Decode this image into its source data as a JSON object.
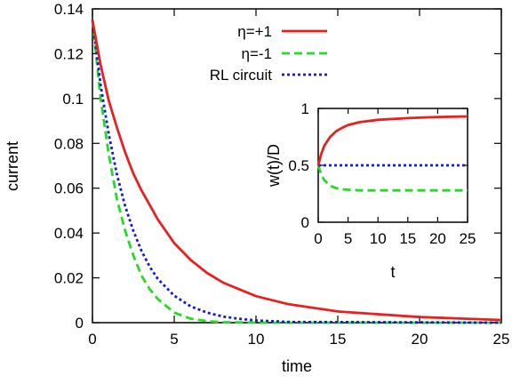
{
  "chart_data": [
    {
      "type": "line",
      "xlabel": "time",
      "ylabel": "current",
      "xlim": [
        0,
        25
      ],
      "ylim": [
        0,
        0.14
      ],
      "xticks": [
        0,
        5,
        10,
        15,
        20,
        25
      ],
      "yticks": [
        0,
        0.02,
        0.04,
        0.06,
        0.08,
        0.1,
        0.12,
        0.14
      ],
      "xtick_labels": [
        "0",
        "5",
        "10",
        "15",
        "20",
        "25"
      ],
      "ytick_labels": [
        "0",
        "0.02",
        "0.04",
        "0.06",
        "0.08",
        "0.1",
        "0.12",
        "0.14"
      ],
      "grid": false,
      "legend_position": "top-center",
      "series": [
        {
          "name": "η=+1",
          "color": "#e8211e",
          "dash": "solid",
          "x": [
            0,
            0.5,
            1,
            1.5,
            2,
            2.5,
            3,
            4,
            5,
            6,
            7,
            8,
            10,
            12,
            15,
            20,
            25
          ],
          "y": [
            0.135,
            0.115,
            0.099,
            0.087,
            0.076,
            0.0665,
            0.059,
            0.046,
            0.0355,
            0.028,
            0.0222,
            0.0178,
            0.0118,
            0.0082,
            0.005,
            0.0025,
            0.0012
          ]
        },
        {
          "name": "η=-1",
          "color": "#22dd22",
          "dash": "dashed",
          "x": [
            0,
            0.5,
            1,
            1.5,
            2,
            2.5,
            3,
            3.5,
            4,
            5,
            6,
            7,
            8,
            10,
            25
          ],
          "y": [
            0.135,
            0.1,
            0.075,
            0.055,
            0.041,
            0.03,
            0.021,
            0.015,
            0.0105,
            0.0045,
            0.0018,
            0.0007,
            0.0002,
            0,
            0
          ]
        },
        {
          "name": "RL circuit",
          "color": "#1a1adc",
          "dash": "dotted",
          "x": [
            0,
            0.5,
            1,
            1.5,
            2,
            2.5,
            3,
            3.5,
            4,
            5,
            6,
            7,
            8,
            9,
            10,
            12,
            25
          ],
          "y": [
            0.135,
            0.106,
            0.084,
            0.066,
            0.052,
            0.041,
            0.032,
            0.025,
            0.0195,
            0.012,
            0.0073,
            0.0045,
            0.0027,
            0.0017,
            0.001,
            0.0003,
            0
          ]
        }
      ]
    },
    {
      "type": "line",
      "xlabel": "t",
      "ylabel": "w(t)/D",
      "xlim": [
        0,
        25
      ],
      "ylim": [
        0,
        1
      ],
      "xticks": [
        0,
        5,
        10,
        15,
        20,
        25
      ],
      "yticks": [
        0,
        0.5,
        1
      ],
      "xtick_labels": [
        "0",
        "5",
        "10",
        "15",
        "20",
        "25"
      ],
      "ytick_labels": [
        "0",
        "0.5",
        "1"
      ],
      "grid": false,
      "series": [
        {
          "name": "η=+1",
          "color": "#e8211e",
          "dash": "solid",
          "x": [
            0,
            0.5,
            1,
            2,
            3,
            4,
            5,
            7,
            10,
            15,
            20,
            25
          ],
          "y": [
            0.5,
            0.6,
            0.67,
            0.75,
            0.8,
            0.83,
            0.855,
            0.88,
            0.9,
            0.915,
            0.925,
            0.93
          ]
        },
        {
          "name": "η=-1",
          "color": "#22dd22",
          "dash": "dashed",
          "x": [
            0,
            0.5,
            1,
            2,
            3,
            4,
            5,
            7,
            10,
            25
          ],
          "y": [
            0.5,
            0.42,
            0.37,
            0.32,
            0.3,
            0.29,
            0.285,
            0.28,
            0.28,
            0.28
          ]
        },
        {
          "name": "RL circuit",
          "color": "#1a1adc",
          "dash": "dotted",
          "x": [
            0,
            25
          ],
          "y": [
            0.5,
            0.5
          ]
        }
      ]
    }
  ]
}
